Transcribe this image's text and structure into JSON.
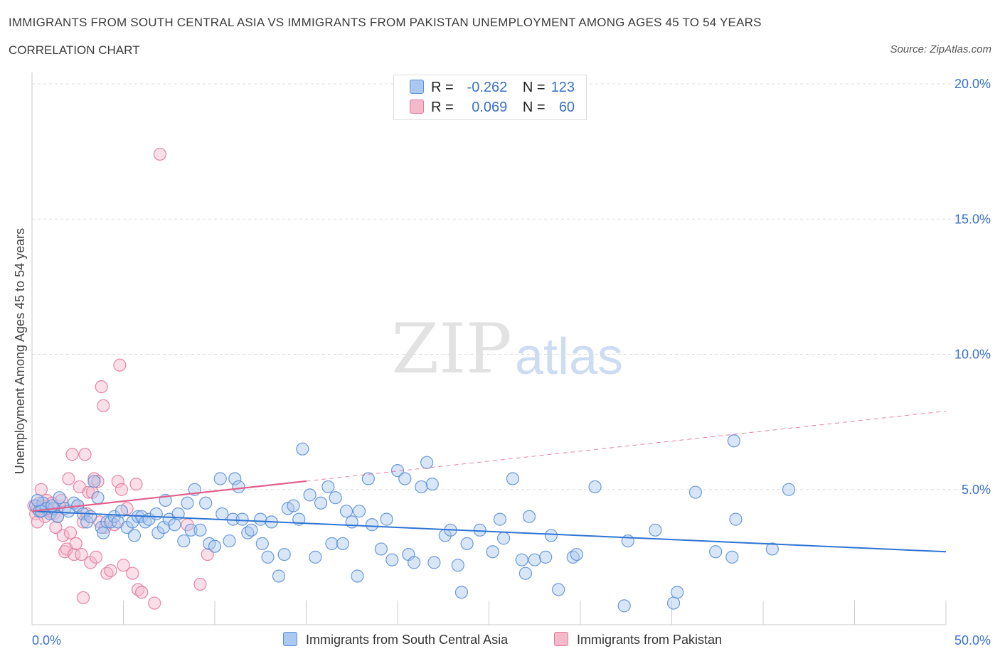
{
  "header": {
    "title": "IMMIGRANTS FROM SOUTH CENTRAL ASIA VS IMMIGRANTS FROM PAKISTAN UNEMPLOYMENT AMONG AGES 45 TO 54 YEARS",
    "subtitle": "CORRELATION CHART",
    "source": "Source: ZipAtlas.com"
  },
  "legend": {
    "r_label": "R =",
    "n_label": "N =",
    "rows": [
      {
        "r": "-0.262",
        "n": "123"
      },
      {
        "r": "0.069",
        "n": "60"
      }
    ]
  },
  "watermark": {
    "zip": "ZIP",
    "atlas": "atlas"
  },
  "colors": {
    "blue_fill": "#aac8f0",
    "blue_stroke": "#5b8fd6",
    "blue_line": "#2e74d2",
    "pink_fill": "#f5b9cc",
    "pink_stroke": "#e27a9b",
    "pink_line": "#e0608a",
    "axis_text": "#3a72c9",
    "grid": "#dddddd"
  },
  "chart_data": {
    "type": "scatter",
    "title": "IMMIGRANTS FROM SOUTH CENTRAL ASIA VS IMMIGRANTS FROM PAKISTAN UNEMPLOYMENT AMONG AGES 45 TO 54 YEARS",
    "xlabel": "",
    "ylabel": "Unemployment Among Ages 45 to 54 years",
    "xlim": [
      0,
      50
    ],
    "ylim": [
      0,
      20
    ],
    "x_tick_labels": [
      "0.0%",
      "50.0%"
    ],
    "y_ticks": [
      5,
      10,
      15,
      20
    ],
    "y_tick_labels": [
      "5.0%",
      "10.0%",
      "15.0%",
      "20.0%"
    ],
    "grid": true,
    "series": [
      {
        "name": "Immigrants from South Central Asia",
        "color": "blue",
        "trend": {
          "x": [
            0,
            50
          ],
          "y": [
            4.2,
            2.7
          ],
          "dashed_from": null
        },
        "points": [
          [
            0.2,
            4.4
          ],
          [
            0.4,
            4.2
          ],
          [
            0.6,
            4.5
          ],
          [
            0.8,
            4.3
          ],
          [
            1.0,
            4.1
          ],
          [
            1.2,
            4.3
          ],
          [
            0.3,
            4.6
          ],
          [
            1.4,
            4.0
          ],
          [
            0.5,
            4.2
          ],
          [
            1.1,
            4.4
          ],
          [
            1.5,
            4.7
          ],
          [
            1.8,
            4.3
          ],
          [
            2.0,
            4.2
          ],
          [
            2.3,
            4.5
          ],
          [
            2.5,
            4.4
          ],
          [
            2.8,
            4.1
          ],
          [
            3.0,
            3.8
          ],
          [
            3.2,
            4.0
          ],
          [
            3.4,
            5.3
          ],
          [
            3.6,
            4.7
          ],
          [
            3.8,
            3.6
          ],
          [
            3.9,
            3.4
          ],
          [
            4.1,
            3.8
          ],
          [
            4.3,
            3.8
          ],
          [
            4.5,
            4.0
          ],
          [
            4.7,
            3.8
          ],
          [
            4.9,
            4.2
          ],
          [
            5.2,
            3.6
          ],
          [
            5.5,
            3.8
          ],
          [
            5.6,
            3.3
          ],
          [
            5.8,
            4.0
          ],
          [
            6.0,
            4.0
          ],
          [
            6.2,
            3.8
          ],
          [
            6.4,
            3.9
          ],
          [
            6.8,
            4.1
          ],
          [
            6.9,
            3.4
          ],
          [
            7.2,
            3.6
          ],
          [
            7.3,
            4.6
          ],
          [
            7.5,
            3.9
          ],
          [
            7.8,
            3.7
          ],
          [
            8.0,
            4.1
          ],
          [
            8.3,
            3.1
          ],
          [
            8.5,
            4.5
          ],
          [
            8.7,
            3.5
          ],
          [
            8.9,
            5.0
          ],
          [
            9.2,
            3.5
          ],
          [
            9.5,
            4.5
          ],
          [
            9.7,
            3.0
          ],
          [
            10.0,
            2.9
          ],
          [
            10.3,
            5.4
          ],
          [
            10.4,
            4.1
          ],
          [
            10.8,
            3.1
          ],
          [
            11.0,
            3.9
          ],
          [
            11.1,
            5.4
          ],
          [
            11.3,
            5.1
          ],
          [
            11.5,
            3.9
          ],
          [
            11.8,
            3.4
          ],
          [
            12.0,
            3.5
          ],
          [
            12.5,
            3.9
          ],
          [
            12.6,
            3.0
          ],
          [
            12.9,
            2.5
          ],
          [
            13.1,
            3.8
          ],
          [
            13.5,
            1.8
          ],
          [
            13.8,
            2.6
          ],
          [
            14.0,
            4.3
          ],
          [
            14.3,
            4.4
          ],
          [
            14.6,
            3.9
          ],
          [
            14.8,
            6.5
          ],
          [
            15.2,
            4.8
          ],
          [
            15.5,
            2.5
          ],
          [
            15.8,
            4.5
          ],
          [
            16.2,
            5.1
          ],
          [
            16.4,
            3.0
          ],
          [
            16.6,
            4.7
          ],
          [
            17.0,
            3.0
          ],
          [
            17.2,
            4.2
          ],
          [
            17.5,
            3.8
          ],
          [
            17.8,
            1.8
          ],
          [
            17.9,
            4.2
          ],
          [
            18.4,
            5.4
          ],
          [
            18.6,
            3.7
          ],
          [
            19.1,
            2.8
          ],
          [
            19.4,
            3.9
          ],
          [
            19.7,
            2.4
          ],
          [
            20.0,
            5.7
          ],
          [
            20.4,
            5.4
          ],
          [
            20.6,
            2.6
          ],
          [
            20.9,
            2.3
          ],
          [
            21.3,
            5.1
          ],
          [
            21.6,
            6.0
          ],
          [
            21.9,
            5.2
          ],
          [
            22.0,
            2.3
          ],
          [
            22.6,
            3.3
          ],
          [
            22.9,
            3.5
          ],
          [
            23.3,
            2.2
          ],
          [
            23.5,
            1.2
          ],
          [
            23.8,
            3.0
          ],
          [
            24.5,
            3.5
          ],
          [
            25.2,
            2.7
          ],
          [
            25.6,
            3.9
          ],
          [
            25.8,
            3.2
          ],
          [
            26.3,
            5.4
          ],
          [
            26.8,
            2.4
          ],
          [
            27.0,
            1.9
          ],
          [
            27.2,
            4.0
          ],
          [
            27.5,
            2.4
          ],
          [
            28.1,
            2.5
          ],
          [
            28.4,
            3.3
          ],
          [
            28.8,
            1.3
          ],
          [
            29.6,
            2.5
          ],
          [
            29.8,
            2.6
          ],
          [
            30.8,
            5.1
          ],
          [
            32.4,
            0.7
          ],
          [
            32.6,
            3.1
          ],
          [
            34.1,
            3.5
          ],
          [
            35.1,
            0.8
          ],
          [
            35.3,
            1.2
          ],
          [
            36.3,
            4.9
          ],
          [
            37.4,
            2.7
          ],
          [
            38.3,
            2.5
          ],
          [
            38.4,
            6.8
          ],
          [
            38.5,
            3.9
          ],
          [
            40.5,
            2.8
          ],
          [
            41.4,
            5.0
          ]
        ]
      },
      {
        "name": "Immigrants from Pakistan",
        "color": "pink",
        "trend": {
          "x": [
            0,
            50
          ],
          "y": [
            4.2,
            7.9
          ],
          "dashed_from": 15
        },
        "points": [
          [
            0.1,
            4.4
          ],
          [
            0.2,
            4.1
          ],
          [
            0.3,
            4.3
          ],
          [
            0.4,
            4.5
          ],
          [
            0.5,
            4.2
          ],
          [
            0.6,
            4.4
          ],
          [
            0.7,
            4.0
          ],
          [
            0.8,
            4.6
          ],
          [
            0.9,
            4.3
          ],
          [
            1.0,
            4.2
          ],
          [
            1.1,
            4.5
          ],
          [
            1.2,
            4.1
          ],
          [
            0.3,
            3.8
          ],
          [
            0.5,
            5.0
          ],
          [
            1.3,
            3.6
          ],
          [
            1.4,
            4.0
          ],
          [
            1.5,
            4.4
          ],
          [
            1.6,
            4.6
          ],
          [
            1.7,
            3.3
          ],
          [
            1.8,
            2.7
          ],
          [
            1.9,
            2.8
          ],
          [
            2.0,
            5.4
          ],
          [
            2.1,
            3.4
          ],
          [
            2.2,
            6.3
          ],
          [
            2.3,
            2.6
          ],
          [
            2.4,
            3.0
          ],
          [
            2.5,
            4.4
          ],
          [
            2.6,
            5.1
          ],
          [
            2.7,
            2.6
          ],
          [
            2.8,
            1.0
          ],
          [
            2.8,
            3.8
          ],
          [
            2.9,
            6.3
          ],
          [
            3.0,
            4.1
          ],
          [
            3.1,
            4.9
          ],
          [
            3.2,
            2.3
          ],
          [
            3.3,
            4.9
          ],
          [
            3.4,
            5.4
          ],
          [
            3.5,
            2.5
          ],
          [
            3.6,
            5.3
          ],
          [
            3.7,
            3.8
          ],
          [
            3.8,
            8.8
          ],
          [
            3.9,
            8.1
          ],
          [
            4.0,
            3.6
          ],
          [
            4.1,
            1.9
          ],
          [
            4.3,
            2.0
          ],
          [
            4.5,
            3.7
          ],
          [
            4.7,
            5.3
          ],
          [
            4.8,
            9.6
          ],
          [
            4.9,
            5.0
          ],
          [
            5.0,
            2.2
          ],
          [
            5.2,
            4.3
          ],
          [
            5.5,
            1.9
          ],
          [
            5.7,
            5.2
          ],
          [
            5.8,
            1.3
          ],
          [
            6.0,
            1.2
          ],
          [
            6.7,
            0.8
          ],
          [
            7.0,
            17.4
          ],
          [
            8.5,
            3.7
          ],
          [
            9.2,
            1.5
          ],
          [
            9.6,
            2.6
          ]
        ]
      }
    ]
  },
  "bottom_legend": {
    "items": [
      "Immigrants from South Central Asia",
      "Immigrants from Pakistan"
    ]
  }
}
